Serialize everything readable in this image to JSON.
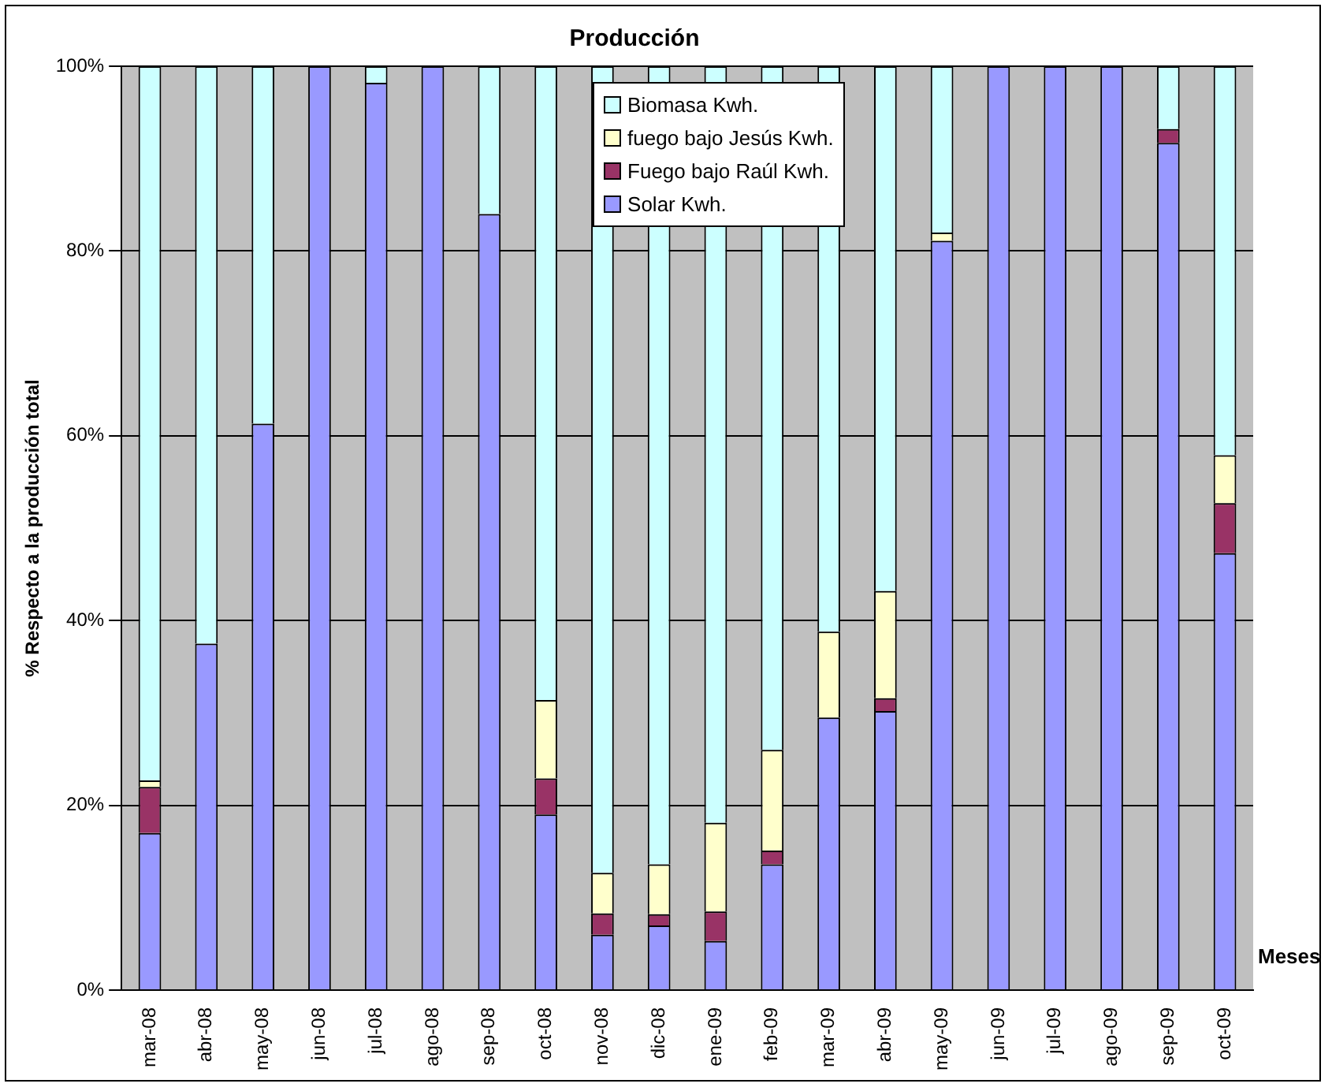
{
  "chart_data": {
    "type": "bar",
    "title": "Producción",
    "xlabel": "Meses",
    "ylabel": "% Respecto a la producción total",
    "categories": [
      "mar-08",
      "abr-08",
      "may-08",
      "jun-08",
      "jul-08",
      "ago-08",
      "sep-08",
      "oct-08",
      "nov-08",
      "dic-08",
      "ene-09",
      "feb-09",
      "mar-09",
      "abr-09",
      "may-09",
      "jun-09",
      "jul-09",
      "ago-09",
      "sep-09",
      "oct-09"
    ],
    "stacked": true,
    "series": [
      {
        "name": "Solar Kwh.",
        "color": "#9999ff",
        "values": [
          17,
          37.5,
          61.3,
          100,
          98.2,
          100,
          84,
          19,
          6,
          7,
          5.3,
          13.6,
          29.5,
          30.2,
          81.1,
          100,
          100,
          100,
          91.7,
          47.3
        ]
      },
      {
        "name": "Fuego bajo Raúl Kwh.",
        "color": "#993366",
        "values": [
          5,
          0,
          0,
          0,
          0,
          0,
          0,
          3.9,
          2.3,
          1.2,
          3.2,
          1.5,
          0,
          1.4,
          0,
          0,
          0,
          0,
          1.5,
          5.4
        ]
      },
      {
        "name": "fuego bajo Jesús Kwh.",
        "color": "#ffffcc",
        "values": [
          0.7,
          0,
          0,
          0,
          0,
          0,
          0,
          8.5,
          4.4,
          5.4,
          9.6,
          10.9,
          9.3,
          11.6,
          0.9,
          0,
          0,
          0,
          0,
          5.2
        ]
      },
      {
        "name": "Biomasa Kwh.",
        "color": "#ccffff",
        "values": [
          77.3,
          62.5,
          38.7,
          0,
          1.8,
          0,
          16,
          68.6,
          87.3,
          86.4,
          81.9,
          74,
          61.2,
          56.8,
          18,
          0,
          0,
          0,
          6.8,
          42.1
        ]
      }
    ],
    "ylim": [
      0,
      100
    ],
    "yticks": [
      {
        "value": 0,
        "label": "0%"
      },
      {
        "value": 20,
        "label": "20%"
      },
      {
        "value": 40,
        "label": "40%"
      },
      {
        "value": 60,
        "label": "60%"
      },
      {
        "value": 80,
        "label": "80%"
      },
      {
        "value": 100,
        "label": "100%"
      }
    ],
    "grid": "y",
    "legend": "top"
  }
}
